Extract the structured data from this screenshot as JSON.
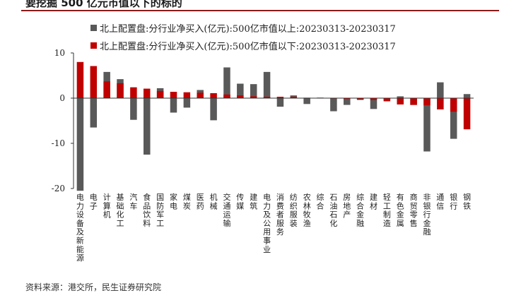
{
  "page": {
    "title": "要挖掘 500 亿元市值以下的标的",
    "source": "资料来源：港交所，民生证券研究院"
  },
  "colors": {
    "above": "#595959",
    "below": "#c00000"
  },
  "chart_data": {
    "type": "bar",
    "title": "",
    "xlabel": "",
    "ylabel": "",
    "ylim": [
      -20,
      10
    ],
    "yticks": [
      10,
      0,
      -10,
      -20
    ],
    "grid": false,
    "legend_position": "top",
    "categories": [
      "电力设备及新能源",
      "电子",
      "计算机",
      "基础化工",
      "汽车",
      "食品饮料",
      "国防军工",
      "家电",
      "煤炭",
      "医药",
      "机械",
      "交通运输",
      "传媒",
      "建筑",
      "电力及公用事业",
      "消费者服务",
      "纺织服装",
      "农林牧渔",
      "综合",
      "石油石化",
      "房地产",
      "综合金融",
      "建材",
      "轻工制造",
      "有色金属",
      "商贸零售",
      "非银行金融",
      "通信",
      "银行",
      "钢铁"
    ],
    "series": [
      {
        "name": "北上配置盘:分行业净买入(亿元):500亿市值以上:20230313-20230317",
        "color": "#595959",
        "values": [
          -20.5,
          -6.5,
          5.8,
          4.2,
          -4.8,
          -12.5,
          2.2,
          -3.2,
          -2.1,
          1.8,
          -4.9,
          6.8,
          3.2,
          3.1,
          5.8,
          -1.9,
          0.6,
          -1.3,
          0.1,
          -2.9,
          -1.5,
          -0.4,
          -2.4,
          -0.3,
          0.4,
          -1.5,
          -11.8,
          3.5,
          -9.0,
          0.9
        ]
      },
      {
        "name": "北上配置盘:分行业净买入(亿元):500亿市值以下:20230313-20230317",
        "color": "#c00000",
        "values": [
          8.0,
          7.1,
          3.7,
          3.3,
          2.4,
          2.1,
          1.6,
          1.4,
          1.3,
          1.2,
          1.1,
          0.8,
          0.6,
          0.4,
          0.3,
          0.3,
          0.3,
          0.1,
          0.1,
          -0.1,
          -0.2,
          -0.3,
          -0.4,
          -0.7,
          -1.4,
          -1.5,
          -1.6,
          -2.5,
          -3.0,
          -6.9
        ]
      }
    ]
  }
}
